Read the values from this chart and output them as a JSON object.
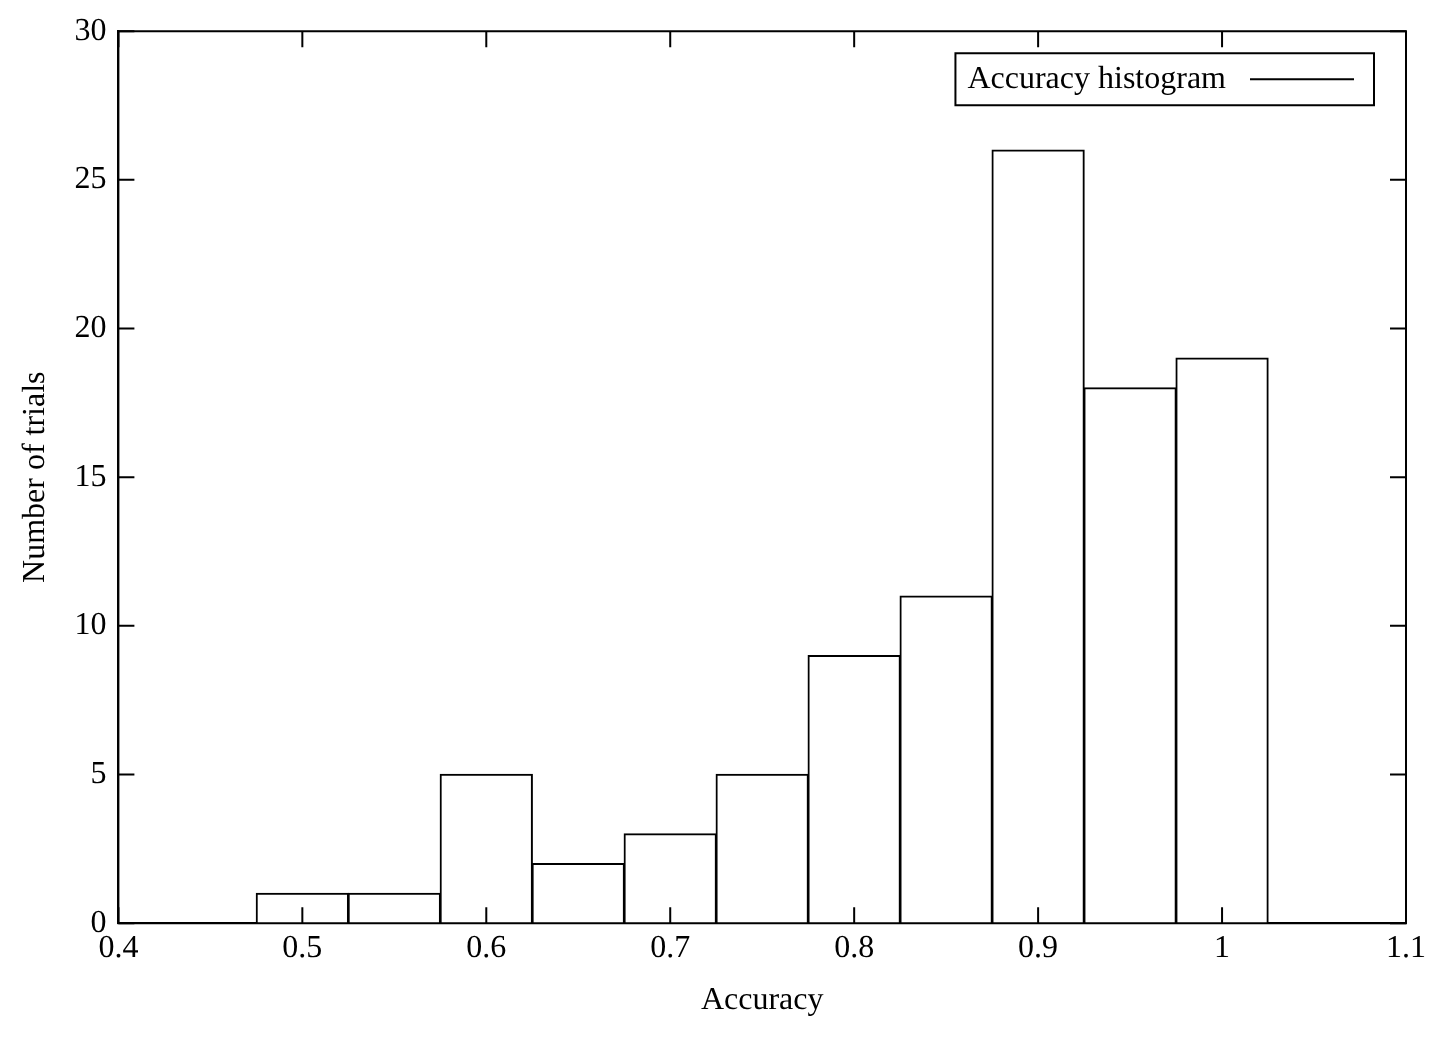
{
  "chart_data": {
    "type": "histogram",
    "xlabel": "Accuracy",
    "ylabel": "Number of trials",
    "bins": [
      0.475,
      0.525,
      0.575,
      0.625,
      0.675,
      0.725,
      0.775,
      0.825,
      0.875,
      0.925,
      0.975,
      1.025
    ],
    "series": [
      {
        "name": "Accuracy histogram",
        "color": "#ffffff",
        "values": [
          1,
          1,
          5,
          2,
          3,
          5,
          9,
          11,
          26,
          18,
          19
        ]
      }
    ],
    "xlim": [
      0.4,
      1.1
    ],
    "xticks": [
      0.4,
      0.5,
      0.6,
      0.7,
      0.8,
      0.9,
      1,
      1.1
    ],
    "ylim": [
      0,
      30
    ],
    "yticks": [
      0,
      5,
      10,
      15,
      20,
      25,
      30
    ],
    "grid": false,
    "legend": "top right"
  }
}
